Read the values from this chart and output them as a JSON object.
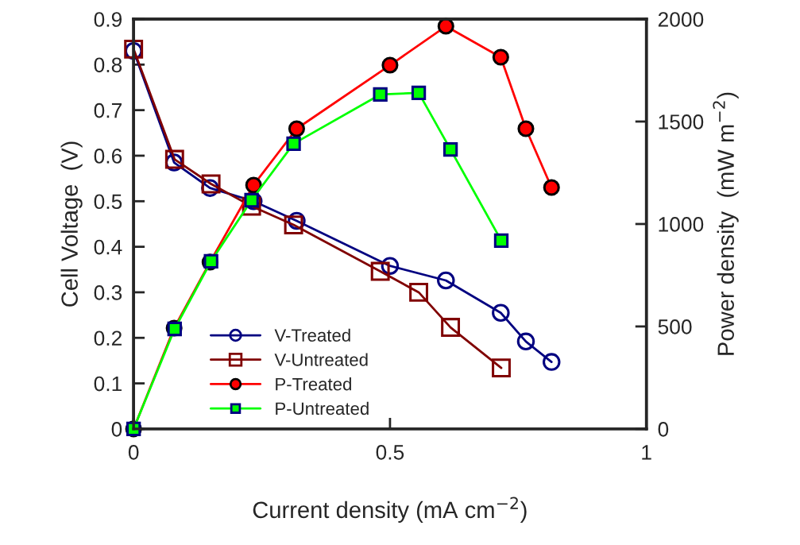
{
  "chart_data": {
    "type": "line",
    "xlabel": "Current density (mA cm$^{−2}$)",
    "ylabel": "Cell Voltage  (V)",
    "y2label": "Power density  (mW m$^{−2}$)",
    "xlim": [
      0,
      1
    ],
    "xticks": [
      0,
      0.5,
      1
    ],
    "ylim": [
      0,
      0.9
    ],
    "yticks": [
      0,
      0.1,
      0.2,
      0.3,
      0.4,
      0.5,
      0.6,
      0.7,
      0.8,
      0.9
    ],
    "y2lim": [
      0,
      2000
    ],
    "y2ticks": [
      0,
      500,
      1000,
      1500,
      2000
    ],
    "grid": false,
    "legend": "bottom left",
    "line_style": "solid",
    "series": [
      {
        "name": "V-Treated",
        "color": "#000080",
        "marker": "circle",
        "x": [
          0,
          0.079,
          0.149,
          0.234,
          0.318,
          0.5,
          0.609,
          0.716,
          0.765,
          0.815
        ],
        "values": [
          0.83,
          0.585,
          0.529,
          0.5,
          0.457,
          0.358,
          0.326,
          0.255,
          0.192,
          0.147
        ]
      },
      {
        "name": "V-Untreated",
        "color": "#800000",
        "marker": "square",
        "x": [
          0,
          0.08,
          0.151,
          0.23,
          0.312,
          0.481,
          0.556,
          0.618,
          0.717
        ],
        "values": [
          0.834,
          0.592,
          0.538,
          0.489,
          0.448,
          0.346,
          0.3,
          0.223,
          0.134
        ]
      },
      {
        "name": "P-Treated",
        "color": "#ff0000",
        "marker": "circle",
        "axis": "y2",
        "x": [
          0,
          0.079,
          0.149,
          0.234,
          0.318,
          0.5,
          0.609,
          0.716,
          0.765,
          0.815
        ],
        "values": [
          0,
          492,
          814,
          1190,
          1465,
          1775,
          1965,
          1814,
          1465,
          1178
        ]
      },
      {
        "name": "P-Untreated",
        "color": "#00ff00",
        "marker": "square",
        "axis": "y2",
        "x": [
          0,
          0.08,
          0.151,
          0.23,
          0.312,
          0.481,
          0.556,
          0.618,
          0.717
        ],
        "values": [
          0,
          488,
          818,
          1116,
          1392,
          1632,
          1640,
          1364,
          919
        ]
      }
    ]
  }
}
